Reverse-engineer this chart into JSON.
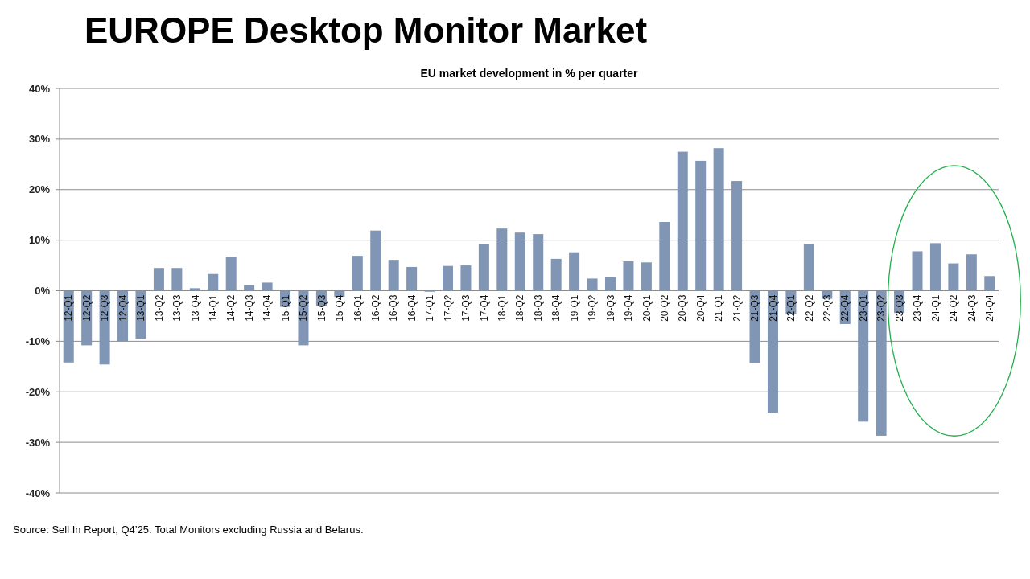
{
  "chart_data": {
    "type": "bar",
    "title": "EUROPE Desktop Monitor Market",
    "subtitle": "EU market development in % per quarter",
    "categories": [
      "12-Q1",
      "12-Q2",
      "12-Q3",
      "12-Q4",
      "13-Q1",
      "13-Q2",
      "13-Q3",
      "13-Q4",
      "14-Q1",
      "14-Q2",
      "14-Q3",
      "14-Q4",
      "15-Q1",
      "15-Q2",
      "15-Q3",
      "15-Q4",
      "16-Q1",
      "16-Q2",
      "16-Q3",
      "16-Q4",
      "17-Q1",
      "17-Q2",
      "17-Q3",
      "17-Q4",
      "18-Q1",
      "18-Q2",
      "18-Q3",
      "18-Q4",
      "19-Q1",
      "19-Q2",
      "19-Q3",
      "19-Q4",
      "20-Q1",
      "20-Q2",
      "20-Q3",
      "20-Q4",
      "21-Q1",
      "21-Q2",
      "21-Q3",
      "21-Q4",
      "22-Q1",
      "22-Q2",
      "22-Q3",
      "22-Q4",
      "23-Q1",
      "23-Q2",
      "23-Q3",
      "23-Q4",
      "24-Q1",
      "24-Q2",
      "24-Q3",
      "24-Q4"
    ],
    "values": [
      -14.2,
      -10.8,
      -14.6,
      -10,
      -9.5,
      4.5,
      4.5,
      0.5,
      3.3,
      6.7,
      1.1,
      1.6,
      -3.2,
      -10.8,
      -3,
      -1.2,
      6.9,
      11.9,
      6.1,
      4.7,
      -0.2,
      4.9,
      5,
      9.2,
      12.3,
      11.5,
      11.2,
      6.3,
      7.6,
      2.4,
      2.7,
      5.8,
      5.6,
      13.6,
      27.5,
      25.7,
      28.2,
      21.7,
      -14.3,
      -24.1,
      -4.7,
      9.2,
      -1.6,
      -6.6,
      -25.9,
      -28.7,
      -4.4,
      7.8,
      9.4,
      5.4,
      7.2,
      2.9
    ],
    "color": "#8096b4",
    "ylim": [
      -40,
      40
    ],
    "yticks": [
      {
        "value": -40,
        "label": "-40%"
      },
      {
        "value": -30,
        "label": "-30%"
      },
      {
        "value": -20,
        "label": "-20%"
      },
      {
        "value": -10,
        "label": "-10%"
      },
      {
        "value": 0,
        "label": "0%"
      },
      {
        "value": 10,
        "label": "10%"
      },
      {
        "value": 20,
        "label": "20%"
      },
      {
        "value": 30,
        "label": "30%"
      },
      {
        "value": 40,
        "label": "40%"
      }
    ],
    "grid": "y",
    "annotations": [
      "Source: Sell In Report, Q4’25. Total Monitors excluding Russia and Belarus."
    ]
  }
}
